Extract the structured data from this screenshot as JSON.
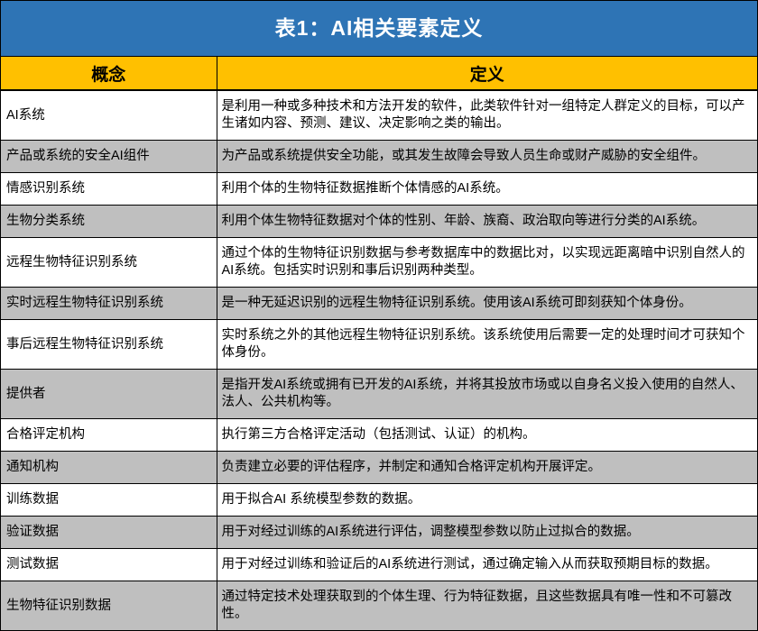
{
  "title": "表1：AI相关要素定义",
  "colors": {
    "title_bg": "#2E74B5",
    "title_text": "#FFFFFF",
    "header_bg": "#FFC000",
    "header_text": "#000000",
    "row_bg": "#FFFFFF",
    "row_alt_bg": "#BFBFBF",
    "border": "#000000"
  },
  "table": {
    "headers": [
      "概念",
      "定义"
    ],
    "rows": [
      {
        "concept": "AI系统",
        "definition": "是利用一种或多种技术和方法开发的软件，此类软件针对一组特定人群定义的目标，可以产生诸如内容、预测、建议、决定影响之类的输出。"
      },
      {
        "concept": "产品或系统的安全AI组件",
        "definition": "为产品或系统提供安全功能，或其发生故障会导致人员生命或财产威胁的安全组件。"
      },
      {
        "concept": "情感识别系统",
        "definition": "利用个体的生物特征数据推断个体情感的AI系统。"
      },
      {
        "concept": "生物分类系统",
        "definition": "利用个体生物特征数据对个体的性别、年龄、族裔、政治取向等进行分类的AI系统。"
      },
      {
        "concept": "远程生物特征识别系统",
        "definition": "通过个体的生物特征识别数据与参考数据库中的数据比对，以实现远距离暗中识别自然人的AI系统。包括实时识别和事后识别两种类型。"
      },
      {
        "concept": "实时远程生物特征识别系统",
        "definition": "是一种无延迟识别的远程生物特征识别系统。使用该AI系统可即刻获知个体身份。"
      },
      {
        "concept": "事后远程生物特征识别系统",
        "definition": "实时系统之外的其他远程生物特征识别系统。该系统使用后需要一定的处理时间才可获知个体身份。"
      },
      {
        "concept": "提供者",
        "definition": "是指开发AI系统或拥有已开发的AI系统，并将其投放市场或以自身名义投入使用的自然人、法人、公共机构等。"
      },
      {
        "concept": "合格评定机构",
        "definition": "执行第三方合格评定活动（包括测试、认证）的机构。"
      },
      {
        "concept": "通知机构",
        "definition": "负责建立必要的评估程序，并制定和通知合格评定机构开展评定。"
      },
      {
        "concept": "训练数据",
        "definition": "用于拟合AI 系统模型参数的数据。"
      },
      {
        "concept": "验证数据",
        "definition": "用于对经过训练的AI系统进行评估，调整模型参数以防止过拟合的数据。"
      },
      {
        "concept": "测试数据",
        "definition": "用于对经过训练和验证后的AI系统进行测试，通过确定输入从而获取预期目标的数据。"
      },
      {
        "concept": "生物特征识别数据",
        "definition": "通过特定技术处理获取到的个体生理、行为特征数据，且这些数据具有唯一性和不可篡改性。"
      }
    ]
  }
}
